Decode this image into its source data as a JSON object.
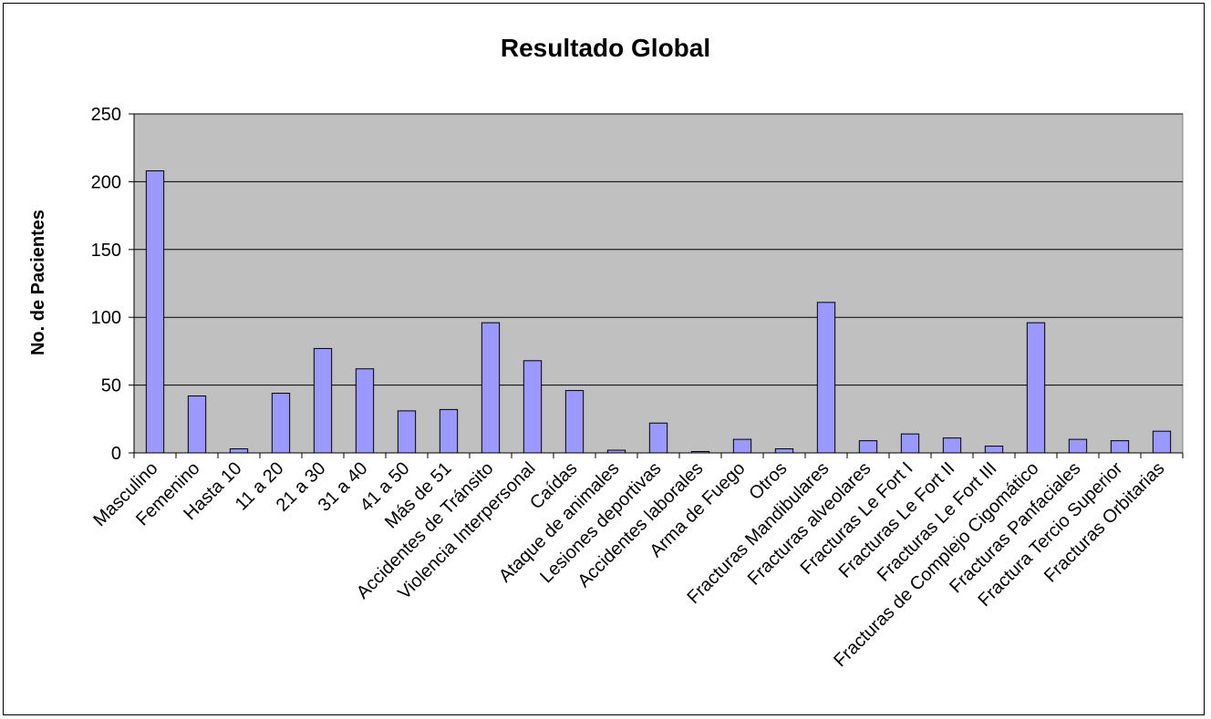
{
  "chart_data": {
    "type": "bar",
    "title": "Resultado Global",
    "xlabel": "",
    "ylabel": "No. de Pacientes",
    "ylim": [
      0,
      250
    ],
    "yticks": [
      "0",
      "50",
      "100",
      "150",
      "200",
      "250"
    ],
    "grid": true,
    "legend": "none",
    "categories": [
      "Masculino",
      "Femenino",
      "Hasta 10",
      "11 a 20",
      "21 a 30",
      "31 a 40",
      "41 a 50",
      "Más de 51",
      "Accidentes de Tránsito",
      "Violencia Interpersonal",
      "Caídas",
      "Ataque de animales",
      "Lesiones deportivas",
      "Accidentes laborales",
      "Arma de Fuego",
      "Otros",
      "Fracturas Mandibulares",
      "Fracturas alveolares",
      "Fracturas Le Fort I",
      "Fracturas Le Fort II",
      "Fracturas Le Fort III",
      "Fracturas de Complejo Cigomático",
      "Fracturas Panfaciales",
      "Fractura Tercio Superior",
      "Fracturas Orbitarias"
    ],
    "values": [
      208,
      42,
      3,
      44,
      77,
      62,
      31,
      32,
      96,
      68,
      46,
      2,
      22,
      1,
      10,
      3,
      111,
      9,
      14,
      11,
      5,
      96,
      10,
      9,
      16
    ],
    "colors": {
      "bar_fill": "#9999ff",
      "bar_stroke": "#000000",
      "plot_bg": "#c0c0c0",
      "grid": "#000000"
    }
  }
}
